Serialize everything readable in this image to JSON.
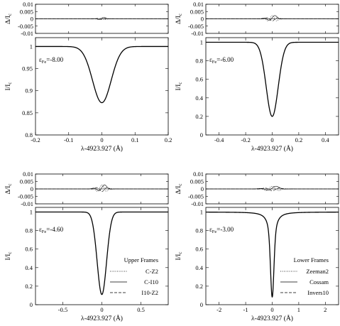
{
  "chart_data": [
    {
      "type": "line",
      "position": "top-left",
      "epsilon_label": "ε",
      "epsilon_sub": "Fe",
      "epsilon_value": "=-8.00",
      "xlabel": "λ-4923.927 (Å)",
      "ylabel_main": "I/Ic",
      "ylabel_resid": "Δ/Ic",
      "xlim": [
        -0.2,
        0.2
      ],
      "ylim_main": [
        0.8,
        1.02
      ],
      "ylim_resid": [
        -0.01,
        0.01
      ],
      "xticks": [
        -0.2,
        -0.1,
        0,
        0.1,
        0.2
      ],
      "xtick_labels": [
        "-0.2",
        "-0.1",
        "0",
        "0.1",
        "0.2"
      ],
      "yticks_main": [
        0.8,
        0.85,
        0.9,
        0.95,
        1
      ],
      "ytick_labels_main": [
        "0.8",
        "0.85",
        "0.9",
        "0.95",
        "1"
      ],
      "yticks_resid": [
        -0.01,
        -0.005,
        0,
        0.005,
        0.01
      ],
      "ytick_labels_resid": [
        "-0.01",
        "-0.005",
        "0",
        "0.005",
        "0.01"
      ],
      "profile": {
        "depth": 0.127,
        "width": 0.028,
        "lorentz": 0.0
      },
      "resid_amp": 0.001,
      "resid_width": 0.012
    },
    {
      "type": "line",
      "position": "top-right",
      "epsilon_label": "ε",
      "epsilon_sub": "Fe",
      "epsilon_value": "=-6.00",
      "xlabel": "λ-4923.927 (Å)",
      "ylabel_main": "I/Ic",
      "ylabel_resid": "Δ/Ic",
      "xlim": [
        -0.5,
        0.5
      ],
      "ylim_main": [
        0,
        1.05
      ],
      "ylim_resid": [
        -0.01,
        0.01
      ],
      "xticks": [
        -0.4,
        -0.2,
        0,
        0.2,
        0.4
      ],
      "xtick_labels": [
        "-0.4",
        "-0.2",
        "0",
        "0.2",
        "0.4"
      ],
      "yticks_main": [
        0,
        0.2,
        0.4,
        0.6,
        0.8,
        1
      ],
      "ytick_labels_main": [
        "0",
        "0.2",
        "0.4",
        "0.6",
        "0.8",
        "1"
      ],
      "yticks_resid": [
        -0.01,
        -0.005,
        0,
        0.005,
        0.01
      ],
      "ytick_labels_resid": [
        "-0.01",
        "-0.005",
        "0",
        "0.005",
        "0.01"
      ],
      "profile": {
        "depth": 0.8,
        "width": 0.045,
        "lorentz": 0.0
      },
      "resid_amp": 0.0025,
      "resid_width": 0.035
    },
    {
      "type": "line",
      "position": "bottom-left",
      "epsilon_label": "ε",
      "epsilon_sub": "Fe",
      "epsilon_value": "=-4.60",
      "xlabel": "λ-4923.927 (Å)",
      "ylabel_main": "I/Ic",
      "ylabel_resid": "Δ/Ic",
      "xlim": [
        -0.85,
        0.85
      ],
      "ylim_main": [
        0,
        1.05
      ],
      "ylim_resid": [
        -0.01,
        0.01
      ],
      "xticks": [
        -0.5,
        0,
        0.5
      ],
      "xtick_labels": [
        "-0.5",
        "0",
        "0.5"
      ],
      "yticks_main": [
        0,
        0.2,
        0.4,
        0.6,
        0.8,
        1
      ],
      "ytick_labels_main": [
        "0",
        "0.2",
        "0.4",
        "0.6",
        "0.8",
        "1"
      ],
      "yticks_resid": [
        -0.01,
        -0.005,
        0,
        0.005,
        0.01
      ],
      "ytick_labels_resid": [
        "-0.01",
        "-0.005",
        "0",
        "0.005",
        "0.01"
      ],
      "profile": {
        "depth": 0.89,
        "width": 0.06,
        "lorentz": 0.0
      },
      "resid_amp": 0.003,
      "resid_width": 0.06,
      "legend": {
        "title": "Upper Frames",
        "entries": [
          "C-Z2",
          "C-I10",
          "I10-Z2"
        ],
        "styles": [
          "dotted",
          "solid",
          "dashed"
        ],
        "placement": "bottom-right"
      }
    },
    {
      "type": "line",
      "position": "bottom-right",
      "epsilon_label": "ε",
      "epsilon_sub": "Fe",
      "epsilon_value": "=-3.00",
      "xlabel": "λ-4923.927 (Å)",
      "ylabel_main": "I/Ic",
      "ylabel_resid": "Δ/Ic",
      "xlim": [
        -2.5,
        2.5
      ],
      "ylim_main": [
        0,
        1.05
      ],
      "ylim_resid": [
        -0.01,
        0.01
      ],
      "xticks": [
        -2,
        -1,
        0,
        1,
        2
      ],
      "xtick_labels": [
        "-2",
        "-1",
        "0",
        "1",
        "2"
      ],
      "yticks_main": [
        0,
        0.2,
        0.4,
        0.6,
        0.8,
        1
      ],
      "ytick_labels_main": [
        "0",
        "0.2",
        "0.4",
        "0.6",
        "0.8",
        "1"
      ],
      "yticks_resid": [
        -0.01,
        -0.005,
        0,
        0.005,
        0.01
      ],
      "ytick_labels_resid": [
        "-0.01",
        "-0.005",
        "0",
        "0.005",
        "0.01"
      ],
      "profile": {
        "depth": 0.92,
        "width": 0.06,
        "lorentz": 0.35
      },
      "resid_amp": 0.002,
      "resid_width": 0.25,
      "legend": {
        "title": "Lower Frames",
        "entries": [
          "Zeeman2",
          "Cossam",
          "Invers10"
        ],
        "styles": [
          "dotted",
          "solid",
          "dashed"
        ],
        "placement": "bottom-right"
      }
    }
  ]
}
